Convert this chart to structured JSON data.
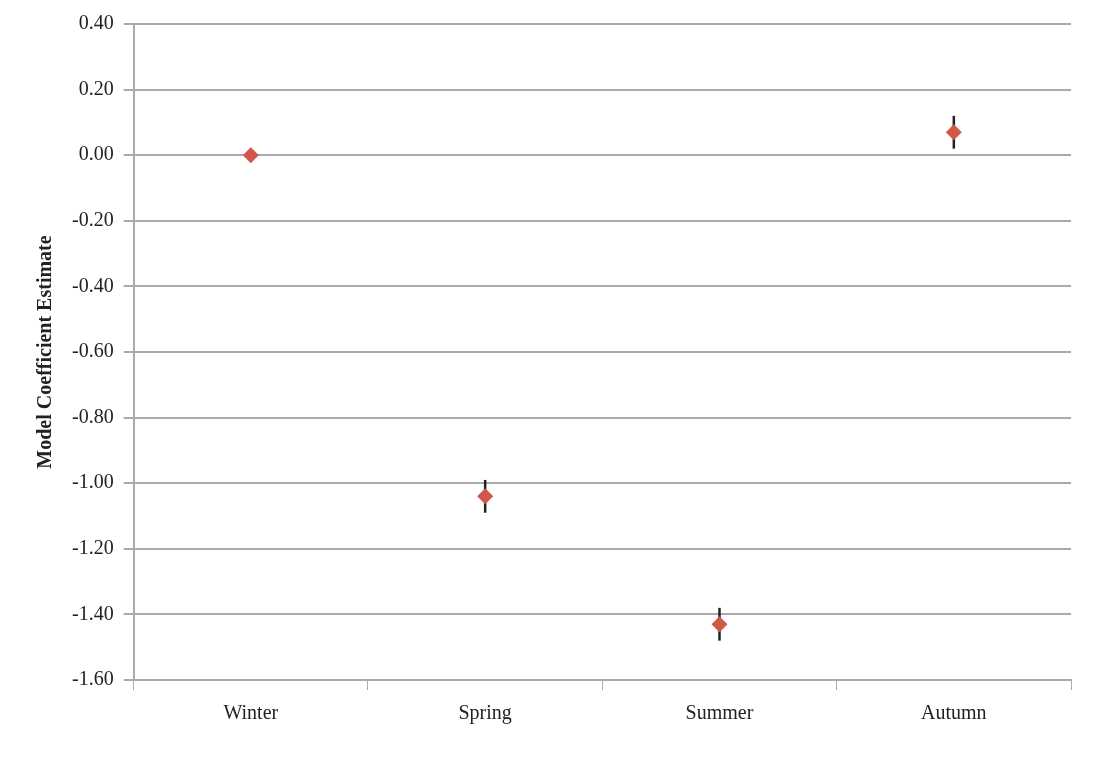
{
  "chart_data": {
    "type": "scatter",
    "ylabel": "Model Coefficient Estimate",
    "categories": [
      "Winter",
      "Spring",
      "Summer",
      "Autumn"
    ],
    "values": [
      0,
      -1.04,
      -1.43,
      0.07
    ],
    "errors": [
      null,
      0.05,
      0.05,
      0.05
    ],
    "color": "#d0574a",
    "marker": "diamond",
    "grid": "y",
    "legend": false,
    "ylim": [
      -1.6,
      0.4
    ],
    "yticks": [
      {
        "value": 0.4,
        "label": "0.40"
      },
      {
        "value": 0.2,
        "label": "0.20"
      },
      {
        "value": 0,
        "label": "0.00"
      },
      {
        "value": -0.2,
        "label": "-0.20"
      },
      {
        "value": -0.4,
        "label": "-0.40"
      },
      {
        "value": -0.6,
        "label": "-0.60"
      },
      {
        "value": -0.8,
        "label": "-0.80"
      },
      {
        "value": -1,
        "label": "-1.00"
      },
      {
        "value": -1.2,
        "label": "-1.20"
      },
      {
        "value": -1.4,
        "label": "-1.40"
      },
      {
        "value": -1.6,
        "label": "-1.60"
      }
    ]
  }
}
